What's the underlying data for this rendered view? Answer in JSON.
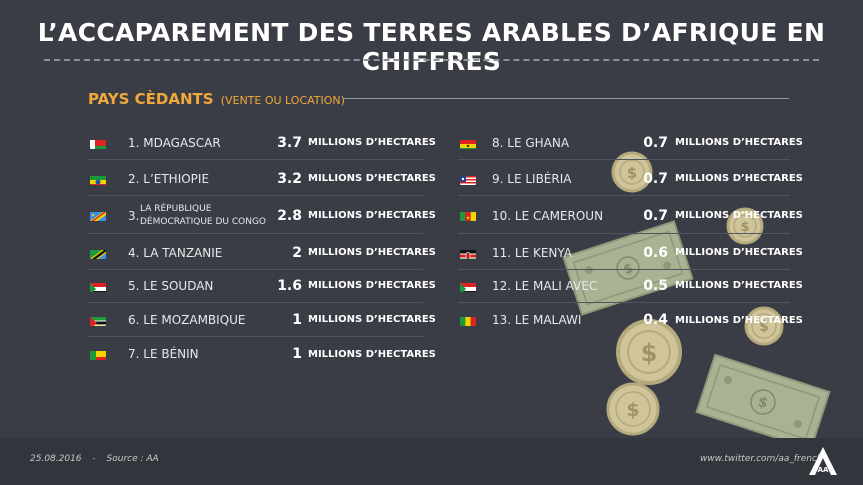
{
  "title": "L’ACCAPAREMENT DES TERRES ARABLES D’AFRIQUE EN CHIFFRES",
  "section": {
    "title": "PAYS CÈDANTS",
    "subtitle": "(VENTE OU LOCATION)"
  },
  "left_list": [
    {
      "label": "1. MDAGASCAR",
      "value": "3.7",
      "unit": "MILLIONS D’HECTARES",
      "flag": "madagascar"
    },
    {
      "label": "2. L’ETHIOPIE",
      "value": "3.2",
      "unit": "MILLIONS D’HECTARES",
      "flag": "ethiopia"
    },
    {
      "label_prefix": "3.",
      "label_line1": "LA RÉPUBLIQUE",
      "label_line2": "DÉMOCRATIQUE DU CONGO",
      "value": "2.8",
      "unit": "MILLIONS D’HECTARES",
      "flag": "drc"
    },
    {
      "label": "4. LA TANZANIE",
      "value": "2",
      "unit": "MILLIONS D’HECTARES",
      "flag": "tanzania"
    },
    {
      "label": "5. LE SOUDAN",
      "value": "1.6",
      "unit": "MILLIONS D’HECTARES",
      "flag": "sudan"
    },
    {
      "label": "6. LE MOZAMBIQUE",
      "value": "1",
      "unit": "MILLIONS D’HECTARES",
      "flag": "mozambique"
    },
    {
      "label": "7. LE BÉNIN",
      "value": "1",
      "unit": "MILLIONS D’HECTARES",
      "flag": "benin"
    }
  ],
  "right_list": [
    {
      "label": "8. LE GHANA",
      "value": "0.7",
      "unit": "MILLIONS D’HECTARES",
      "flag": "ghana"
    },
    {
      "label": "9. LE LIBÉRIA",
      "value": "0.7",
      "unit": "MILLIONS D’HECTARES",
      "flag": "liberia"
    },
    {
      "label": "10. LE CAMEROUN",
      "value": "0.7",
      "unit": "MILLIONS D’HECTARES",
      "flag": "cameroon"
    },
    {
      "label": "11. LE KENYA",
      "value": "0.6",
      "unit": "MILLIONS D’HECTARES",
      "flag": "kenya"
    },
    {
      "label": "12.  LE MALI AVEC",
      "value": "0.5",
      "unit": "MILLIONS D’HECTARES",
      "flag": "sudan"
    },
    {
      "label": "13. LE MALAWI",
      "value": "0.4",
      "unit": "MILLIONS D’HECTARES",
      "flag": "mali"
    }
  ],
  "footer": {
    "date": "25.08.2016",
    "separator": "-",
    "source": "Source : AA",
    "twitter": "www.twitter.com/aa_french"
  },
  "decor": {
    "coin_symbol": "$",
    "logo_text": "AA"
  },
  "colors": {
    "background": "#3a3d45",
    "accent": "#f2a93b",
    "footer": "#33353c",
    "coin": "#cfc49a",
    "bill": "#a9b394"
  }
}
